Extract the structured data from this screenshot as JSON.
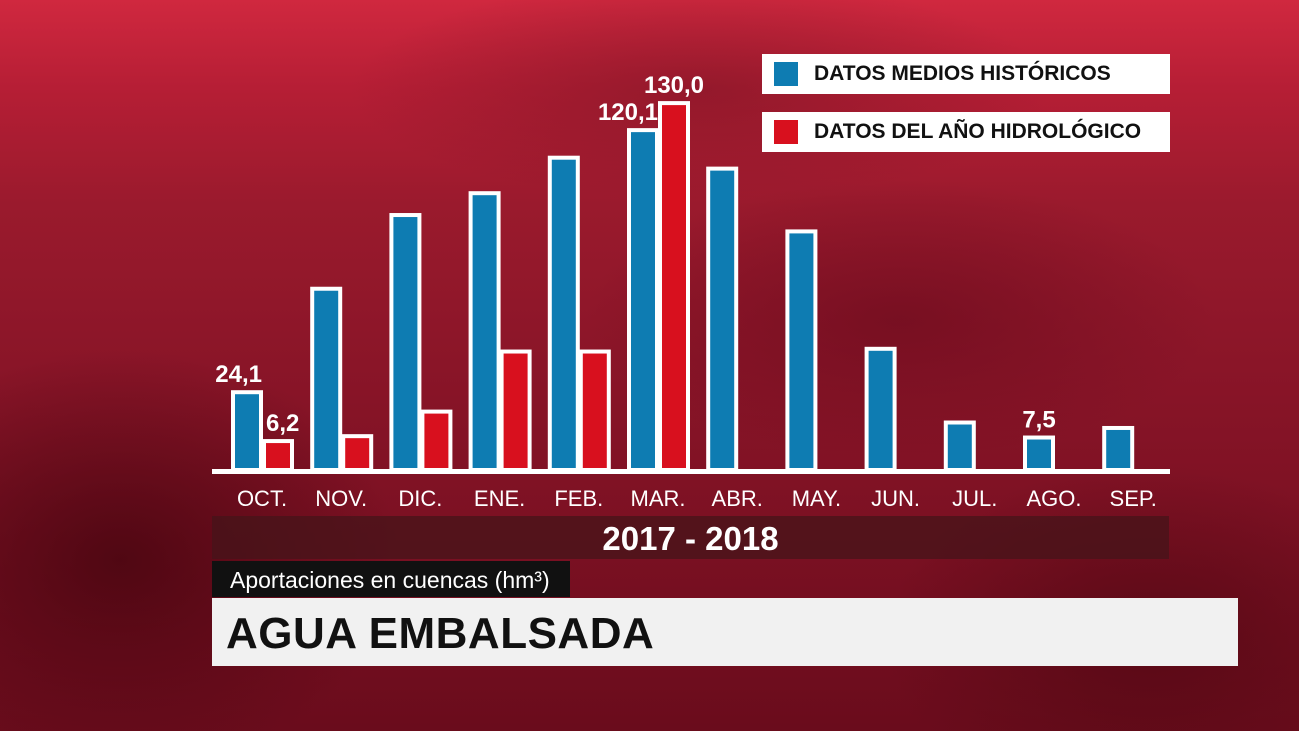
{
  "chart_data": {
    "type": "bar",
    "categories": [
      "OCT.",
      "NOV.",
      "DIC.",
      "ENE.",
      "FEB.",
      "MAR.",
      "ABR.",
      "MAY.",
      "JUN.",
      "JUL.",
      "AGO.",
      "SEP."
    ],
    "series": [
      {
        "name": "DATOS MEDIOS HISTÓRICOS",
        "color": "#0e7cb2",
        "values": [
          24.1,
          62,
          89,
          97,
          110,
          120.1,
          106,
          83,
          40,
          13,
          7.5,
          11
        ],
        "data_labels": [
          "24,1",
          null,
          null,
          null,
          null,
          "120,1",
          null,
          null,
          null,
          null,
          "7,5",
          null
        ]
      },
      {
        "name": "DATOS DEL AÑO HIDROLÓGICO",
        "color": "#d8101e",
        "values": [
          6.2,
          8,
          17,
          39,
          39,
          130.0,
          null,
          null,
          null,
          null,
          null,
          null
        ],
        "data_labels": [
          "6,2",
          null,
          null,
          null,
          null,
          "130,0",
          null,
          null,
          null,
          null,
          null,
          null
        ]
      }
    ],
    "title": "AGUA EMBALSADA",
    "subtitle": "Aportaciones en cuencas (hm³)",
    "xlabel": "2017 - 2018",
    "ylabel": "",
    "ylim": [
      0,
      135
    ],
    "grid": false,
    "legend": "top-right"
  }
}
